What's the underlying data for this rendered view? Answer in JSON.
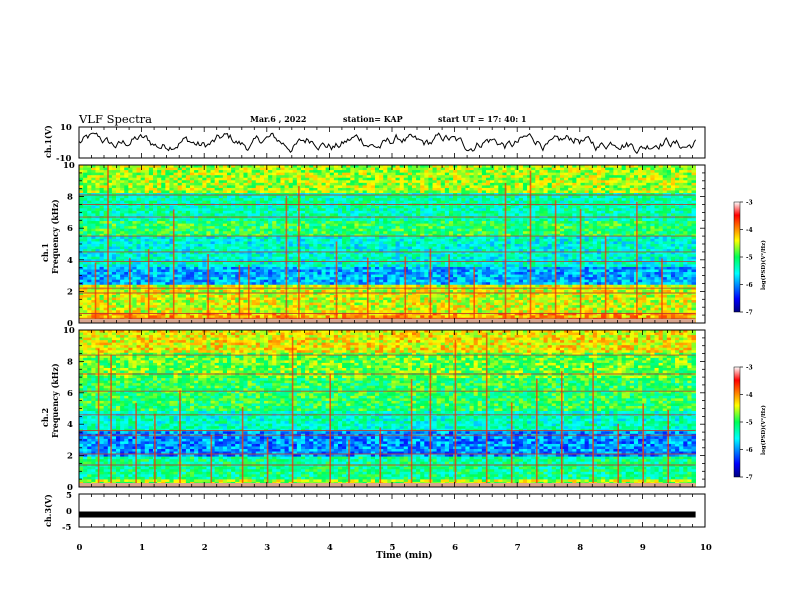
{
  "header": {
    "title": "VLF Spectra",
    "date": "Mar.6 , 2022",
    "station": "station= KAP",
    "start_ut": "start UT =   17: 40: 1"
  },
  "chart_data": [
    {
      "type": "line",
      "panel": "ch1-waveform",
      "ylabel": "ch.1(V)",
      "ylim": [
        -10,
        10
      ],
      "ytick_labels": [
        "10",
        "-10"
      ],
      "xlim": [
        0,
        10
      ],
      "trace": {
        "x_end": 9.85,
        "amplitude_range": [
          -7,
          6
        ],
        "color": "#000000"
      }
    },
    {
      "type": "heatmap",
      "panel": "ch1-spectrogram",
      "ylabel": "ch.1\nFrequency (kHz)",
      "ylim": [
        0,
        10
      ],
      "ytick_labels": [
        "0",
        "2",
        "4",
        "6",
        "8",
        "10"
      ],
      "xlim": [
        0,
        10
      ],
      "x_end": 9.85,
      "colorbar": {
        "label": "log(PSD)(V²/Hz)",
        "range": [
          -7,
          -3
        ],
        "tick_labels": [
          "-3",
          "-4",
          "-5",
          "-6",
          "-7"
        ]
      },
      "horizontal_lines_khz": [
        0.3,
        0.6,
        1.9,
        2.2,
        3.9,
        4.5,
        5.5,
        6.7,
        7.5,
        8.1
      ],
      "vertical_bursts_min": [
        0.25,
        0.45,
        0.8,
        1.1,
        1.5,
        2.05,
        2.55,
        2.7,
        3.3,
        3.5,
        4.1,
        4.6,
        5.2,
        5.6,
        5.9,
        6.3,
        6.8,
        7.2,
        7.6,
        8.0,
        8.4,
        8.9,
        9.3
      ]
    },
    {
      "type": "heatmap",
      "panel": "ch2-spectrogram",
      "ylabel": "ch.2\nFrequency (kHz)",
      "ylim": [
        0,
        10
      ],
      "ytick_labels": [
        "0",
        "2",
        "4",
        "6",
        "8",
        "10"
      ],
      "xlim": [
        0,
        10
      ],
      "x_end": 9.85,
      "colorbar": {
        "label": "log(PSD)(V²/Hz)",
        "range": [
          -7,
          -3
        ],
        "tick_labels": [
          "-3",
          "-4",
          "-5",
          "-6",
          "-7"
        ]
      },
      "horizontal_lines_khz": [
        0.2,
        1.4,
        2.1,
        3.3,
        3.6,
        4.6,
        6.1,
        7.2,
        8.4
      ],
      "vertical_bursts_min": [
        0.3,
        0.5,
        0.9,
        1.2,
        1.6,
        2.1,
        2.6,
        3.0,
        3.4,
        4.0,
        4.3,
        4.8,
        5.3,
        5.6,
        6.0,
        6.5,
        6.9,
        7.3,
        7.7,
        8.2,
        8.6,
        9.0,
        9.4
      ]
    },
    {
      "type": "line",
      "panel": "ch3-waveform",
      "ylabel": "ch.3(V)",
      "ylim": [
        -5,
        5
      ],
      "ytick_labels": [
        "5",
        "0",
        "-5"
      ],
      "xlim": [
        0,
        10
      ],
      "trace": {
        "x_end": 9.85,
        "value": -1.2,
        "color": "#000000"
      }
    }
  ],
  "x_axis": {
    "label": "Time (min)",
    "tick_labels": [
      "0",
      "1",
      "2",
      "3",
      "4",
      "5",
      "6",
      "7",
      "8",
      "9",
      "10"
    ]
  }
}
